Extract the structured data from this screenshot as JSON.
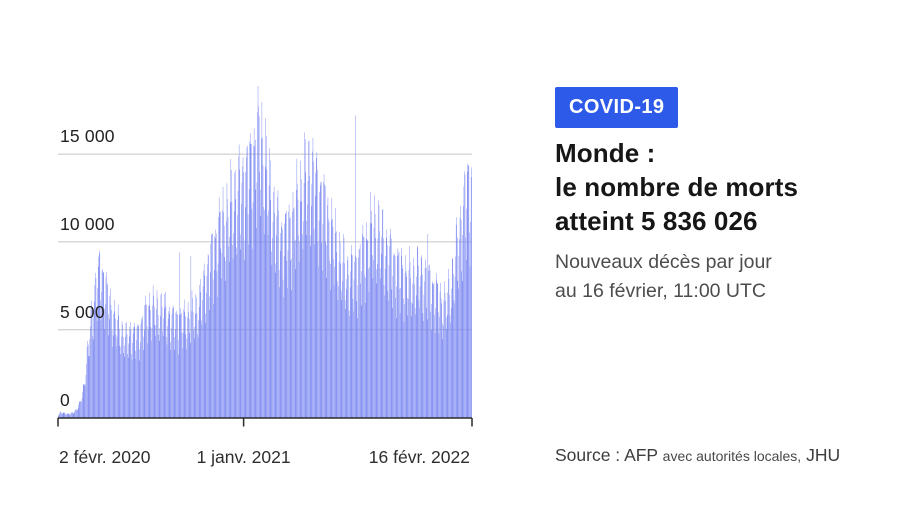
{
  "panel": {
    "badge_label": "COVID-19",
    "title_lines": [
      "Monde :",
      "le nombre de morts",
      "atteint 5 836 026"
    ],
    "subtitle_lines": [
      "Nouveaux décès par jour",
      "au 16 février, 11:00 UTC"
    ],
    "source_prefix": "Source : AFP",
    "source_detail": "avec autorités locales,",
    "source_suffix": "JHU"
  },
  "colors": {
    "bar": "#7885f1",
    "badge": "#2d5ae9",
    "grid": "#c6c6c6",
    "axis": "#2b2b2b",
    "title_text": "#161616",
    "subtitle_text": "#4d4d4d",
    "source_text": "#3d3d3d"
  },
  "chart": {
    "y_axis": {
      "gridlines": [
        {
          "value": 15000,
          "label": "15 000"
        },
        {
          "value": 10000,
          "label": "10 000"
        },
        {
          "value": 5000,
          "label": "5 000"
        },
        {
          "value": 0,
          "label": "0"
        }
      ]
    },
    "x_axis": {
      "ticks": [
        {
          "t": 0,
          "label": "2 févr. 2020"
        },
        {
          "t": 334,
          "label": "1 janv. 2021"
        },
        {
          "t": 745,
          "label": "16 févr. 2022"
        }
      ]
    }
  },
  "chart_data": {
    "type": "bar",
    "title": "Nouveaux décès par jour (Monde)",
    "x_start": "2020-02-02",
    "x_end": "2022-02-16",
    "frequency": "daily",
    "days_total": 745,
    "ylim": [
      0,
      19000
    ],
    "total_deaths_label": "5 836 026",
    "weekly_envelope": [
      [
        0,
        120
      ],
      [
        4,
        330
      ],
      [
        11,
        300
      ],
      [
        18,
        220
      ],
      [
        25,
        300
      ],
      [
        32,
        480
      ],
      [
        39,
        900
      ],
      [
        46,
        2000
      ],
      [
        53,
        4200
      ],
      [
        60,
        6600
      ],
      [
        67,
        8300
      ],
      [
        75,
        9600
      ],
      [
        82,
        9000
      ],
      [
        89,
        7800
      ],
      [
        96,
        7000
      ],
      [
        103,
        6300
      ],
      [
        110,
        5800
      ],
      [
        117,
        5400
      ],
      [
        124,
        5100
      ],
      [
        131,
        5600
      ],
      [
        138,
        5300
      ],
      [
        145,
        5500
      ],
      [
        152,
        6200
      ],
      [
        159,
        6800
      ],
      [
        166,
        7200
      ],
      [
        173,
        7000
      ],
      [
        180,
        6900
      ],
      [
        187,
        7100
      ],
      [
        194,
        6800
      ],
      [
        201,
        6500
      ],
      [
        208,
        6300
      ],
      [
        215,
        6400
      ],
      [
        222,
        6300
      ],
      [
        229,
        6400
      ],
      [
        236,
        6600
      ],
      [
        243,
        6700
      ],
      [
        250,
        7100
      ],
      [
        257,
        7700
      ],
      [
        264,
        8800
      ],
      [
        271,
        9800
      ],
      [
        278,
        10700
      ],
      [
        285,
        11600
      ],
      [
        292,
        12400
      ],
      [
        299,
        12700
      ],
      [
        306,
        13100
      ],
      [
        313,
        13900
      ],
      [
        320,
        14500
      ],
      [
        327,
        14800
      ],
      [
        334,
        15300
      ],
      [
        341,
        15900
      ],
      [
        348,
        16400
      ],
      [
        355,
        17500
      ],
      [
        362,
        18500
      ],
      [
        369,
        17200
      ],
      [
        376,
        15800
      ],
      [
        383,
        14300
      ],
      [
        390,
        13000
      ],
      [
        397,
        12300
      ],
      [
        404,
        11700
      ],
      [
        411,
        11900
      ],
      [
        418,
        12500
      ],
      [
        425,
        13100
      ],
      [
        432,
        13900
      ],
      [
        439,
        14700
      ],
      [
        446,
        15400
      ],
      [
        453,
        16000
      ],
      [
        460,
        15500
      ],
      [
        467,
        14900
      ],
      [
        474,
        14300
      ],
      [
        481,
        13500
      ],
      [
        488,
        12600
      ],
      [
        495,
        11800
      ],
      [
        502,
        11000
      ],
      [
        509,
        10200
      ],
      [
        516,
        9700
      ],
      [
        523,
        9300
      ],
      [
        530,
        9500
      ],
      [
        537,
        9800
      ],
      [
        544,
        10300
      ],
      [
        551,
        10900
      ],
      [
        558,
        11500
      ],
      [
        565,
        12100
      ],
      [
        572,
        12300
      ],
      [
        579,
        11900
      ],
      [
        586,
        11400
      ],
      [
        593,
        10800
      ],
      [
        600,
        10400
      ],
      [
        607,
        10000
      ],
      [
        614,
        9700
      ],
      [
        621,
        9400
      ],
      [
        628,
        9100
      ],
      [
        635,
        8900
      ],
      [
        642,
        9100
      ],
      [
        649,
        9400
      ],
      [
        656,
        9200
      ],
      [
        663,
        9000
      ],
      [
        670,
        8700
      ],
      [
        677,
        8300
      ],
      [
        684,
        7900
      ],
      [
        691,
        7500
      ],
      [
        698,
        7400
      ],
      [
        705,
        8100
      ],
      [
        712,
        9500
      ],
      [
        719,
        11000
      ],
      [
        726,
        12600
      ],
      [
        733,
        14100
      ],
      [
        740,
        15300
      ],
      [
        745,
        15000
      ]
    ],
    "weekday_factors": [
      0.62,
      0.76,
      0.9,
      1.0,
      0.97,
      0.91,
      0.71
    ],
    "spikes": [
      [
        218,
        9400
      ],
      [
        239,
        9200
      ],
      [
        536,
        17200
      ],
      [
        666,
        10450
      ]
    ]
  }
}
